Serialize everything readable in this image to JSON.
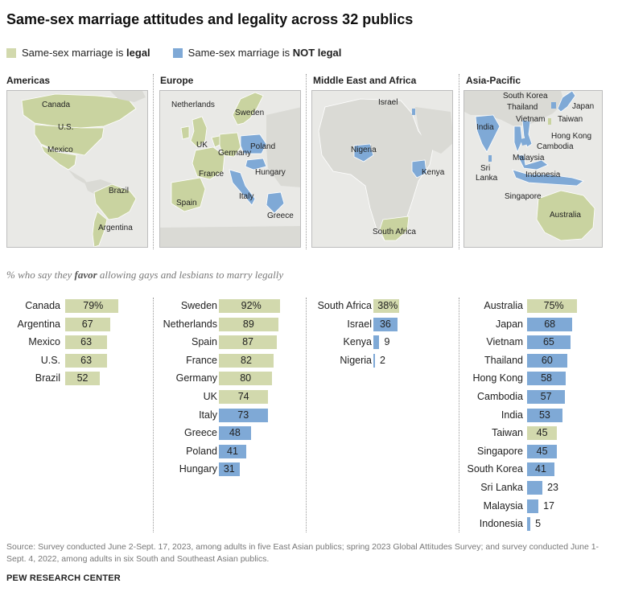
{
  "title": "Same-sex marriage attitudes and legality across 32 publics",
  "legend": {
    "legal_prefix": "Same-sex marriage is ",
    "legal_bold": "legal",
    "not_legal_prefix": "Same-sex marriage is ",
    "not_legal_bold": "NOT legal"
  },
  "colors": {
    "legal": "#d2d9ad",
    "not_legal": "#7fa9d6",
    "land": "#e9e9e6",
    "map_legal": "#c9d3a0",
    "map_not_legal": "#7fa9d6"
  },
  "regions": {
    "americas": "Americas",
    "europe": "Europe",
    "mea": "Middle East and Africa",
    "asia": "Asia-Pacific"
  },
  "map_labels": {
    "americas": [
      "Canada",
      "U.S.",
      "Mexico",
      "Brazil",
      "Argentina"
    ],
    "europe": [
      "Netherlands",
      "Sweden",
      "UK",
      "Germany",
      "Poland",
      "France",
      "Hungary",
      "Spain",
      "Italy",
      "Greece"
    ],
    "mea": [
      "Israel",
      "Nigeria",
      "Kenya",
      "South Africa"
    ],
    "asia": [
      "South Korea",
      "Thailand",
      "Japan",
      "Taiwan",
      "Vietnam",
      "India",
      "Hong Kong",
      "Cambodia",
      "Malaysia",
      "Sri",
      "Lanka",
      "Indonesia",
      "Singapore",
      "Australia"
    ]
  },
  "subtitle": {
    "pre": "% who say they ",
    "bold": "favor",
    "post": " allowing gays and lesbians to marry legally"
  },
  "chart_data": {
    "type": "bar",
    "orientation": "horizontal",
    "value_unit": "%",
    "legend": [
      "Same-sex marriage is legal",
      "Same-sex marriage is NOT legal"
    ],
    "groups": [
      {
        "region": "Americas",
        "items": [
          {
            "name": "Canada",
            "value": 79,
            "legal": true,
            "label": "79%"
          },
          {
            "name": "Argentina",
            "value": 67,
            "legal": true,
            "label": "67"
          },
          {
            "name": "Mexico",
            "value": 63,
            "legal": true,
            "label": "63"
          },
          {
            "name": "U.S.",
            "value": 63,
            "legal": true,
            "label": "63"
          },
          {
            "name": "Brazil",
            "value": 52,
            "legal": true,
            "label": "52"
          }
        ]
      },
      {
        "region": "Europe",
        "items": [
          {
            "name": "Sweden",
            "value": 92,
            "legal": true,
            "label": "92%"
          },
          {
            "name": "Netherlands",
            "value": 89,
            "legal": true,
            "label": "89"
          },
          {
            "name": "Spain",
            "value": 87,
            "legal": true,
            "label": "87"
          },
          {
            "name": "France",
            "value": 82,
            "legal": true,
            "label": "82"
          },
          {
            "name": "Germany",
            "value": 80,
            "legal": true,
            "label": "80"
          },
          {
            "name": "UK",
            "value": 74,
            "legal": true,
            "label": "74"
          },
          {
            "name": "Italy",
            "value": 73,
            "legal": false,
            "label": "73"
          },
          {
            "name": "Greece",
            "value": 48,
            "legal": false,
            "label": "48"
          },
          {
            "name": "Poland",
            "value": 41,
            "legal": false,
            "label": "41"
          },
          {
            "name": "Hungary",
            "value": 31,
            "legal": false,
            "label": "31"
          }
        ]
      },
      {
        "region": "Middle East and Africa",
        "items": [
          {
            "name": "South Africa",
            "value": 38,
            "legal": true,
            "label": "38%"
          },
          {
            "name": "Israel",
            "value": 36,
            "legal": false,
            "label": "36"
          },
          {
            "name": "Kenya",
            "value": 9,
            "legal": false,
            "label": "9"
          },
          {
            "name": "Nigeria",
            "value": 2,
            "legal": false,
            "label": "2"
          }
        ]
      },
      {
        "region": "Asia-Pacific",
        "items": [
          {
            "name": "Australia",
            "value": 75,
            "legal": true,
            "label": "75%"
          },
          {
            "name": "Japan",
            "value": 68,
            "legal": false,
            "label": "68"
          },
          {
            "name": "Vietnam",
            "value": 65,
            "legal": false,
            "label": "65"
          },
          {
            "name": "Thailand",
            "value": 60,
            "legal": false,
            "label": "60"
          },
          {
            "name": "Hong Kong",
            "value": 58,
            "legal": false,
            "label": "58"
          },
          {
            "name": "Cambodia",
            "value": 57,
            "legal": false,
            "label": "57"
          },
          {
            "name": "India",
            "value": 53,
            "legal": false,
            "label": "53"
          },
          {
            "name": "Taiwan",
            "value": 45,
            "legal": true,
            "label": "45"
          },
          {
            "name": "Singapore",
            "value": 45,
            "legal": false,
            "label": "45"
          },
          {
            "name": "South Korea",
            "value": 41,
            "legal": false,
            "label": "41"
          },
          {
            "name": "Sri Lanka",
            "value": 23,
            "legal": false,
            "label": "23"
          },
          {
            "name": "Malaysia",
            "value": 17,
            "legal": false,
            "label": "17"
          },
          {
            "name": "Indonesia",
            "value": 5,
            "legal": false,
            "label": "5"
          }
        ]
      }
    ]
  },
  "source": "Source: Survey conducted June 2-Sept. 17, 2023, among adults in five East Asian publics; spring 2023 Global Attitudes Survey; and survey conducted June 1-Sept. 4, 2022, among adults in six South and Southeast Asian publics.",
  "credit": "PEW RESEARCH CENTER"
}
